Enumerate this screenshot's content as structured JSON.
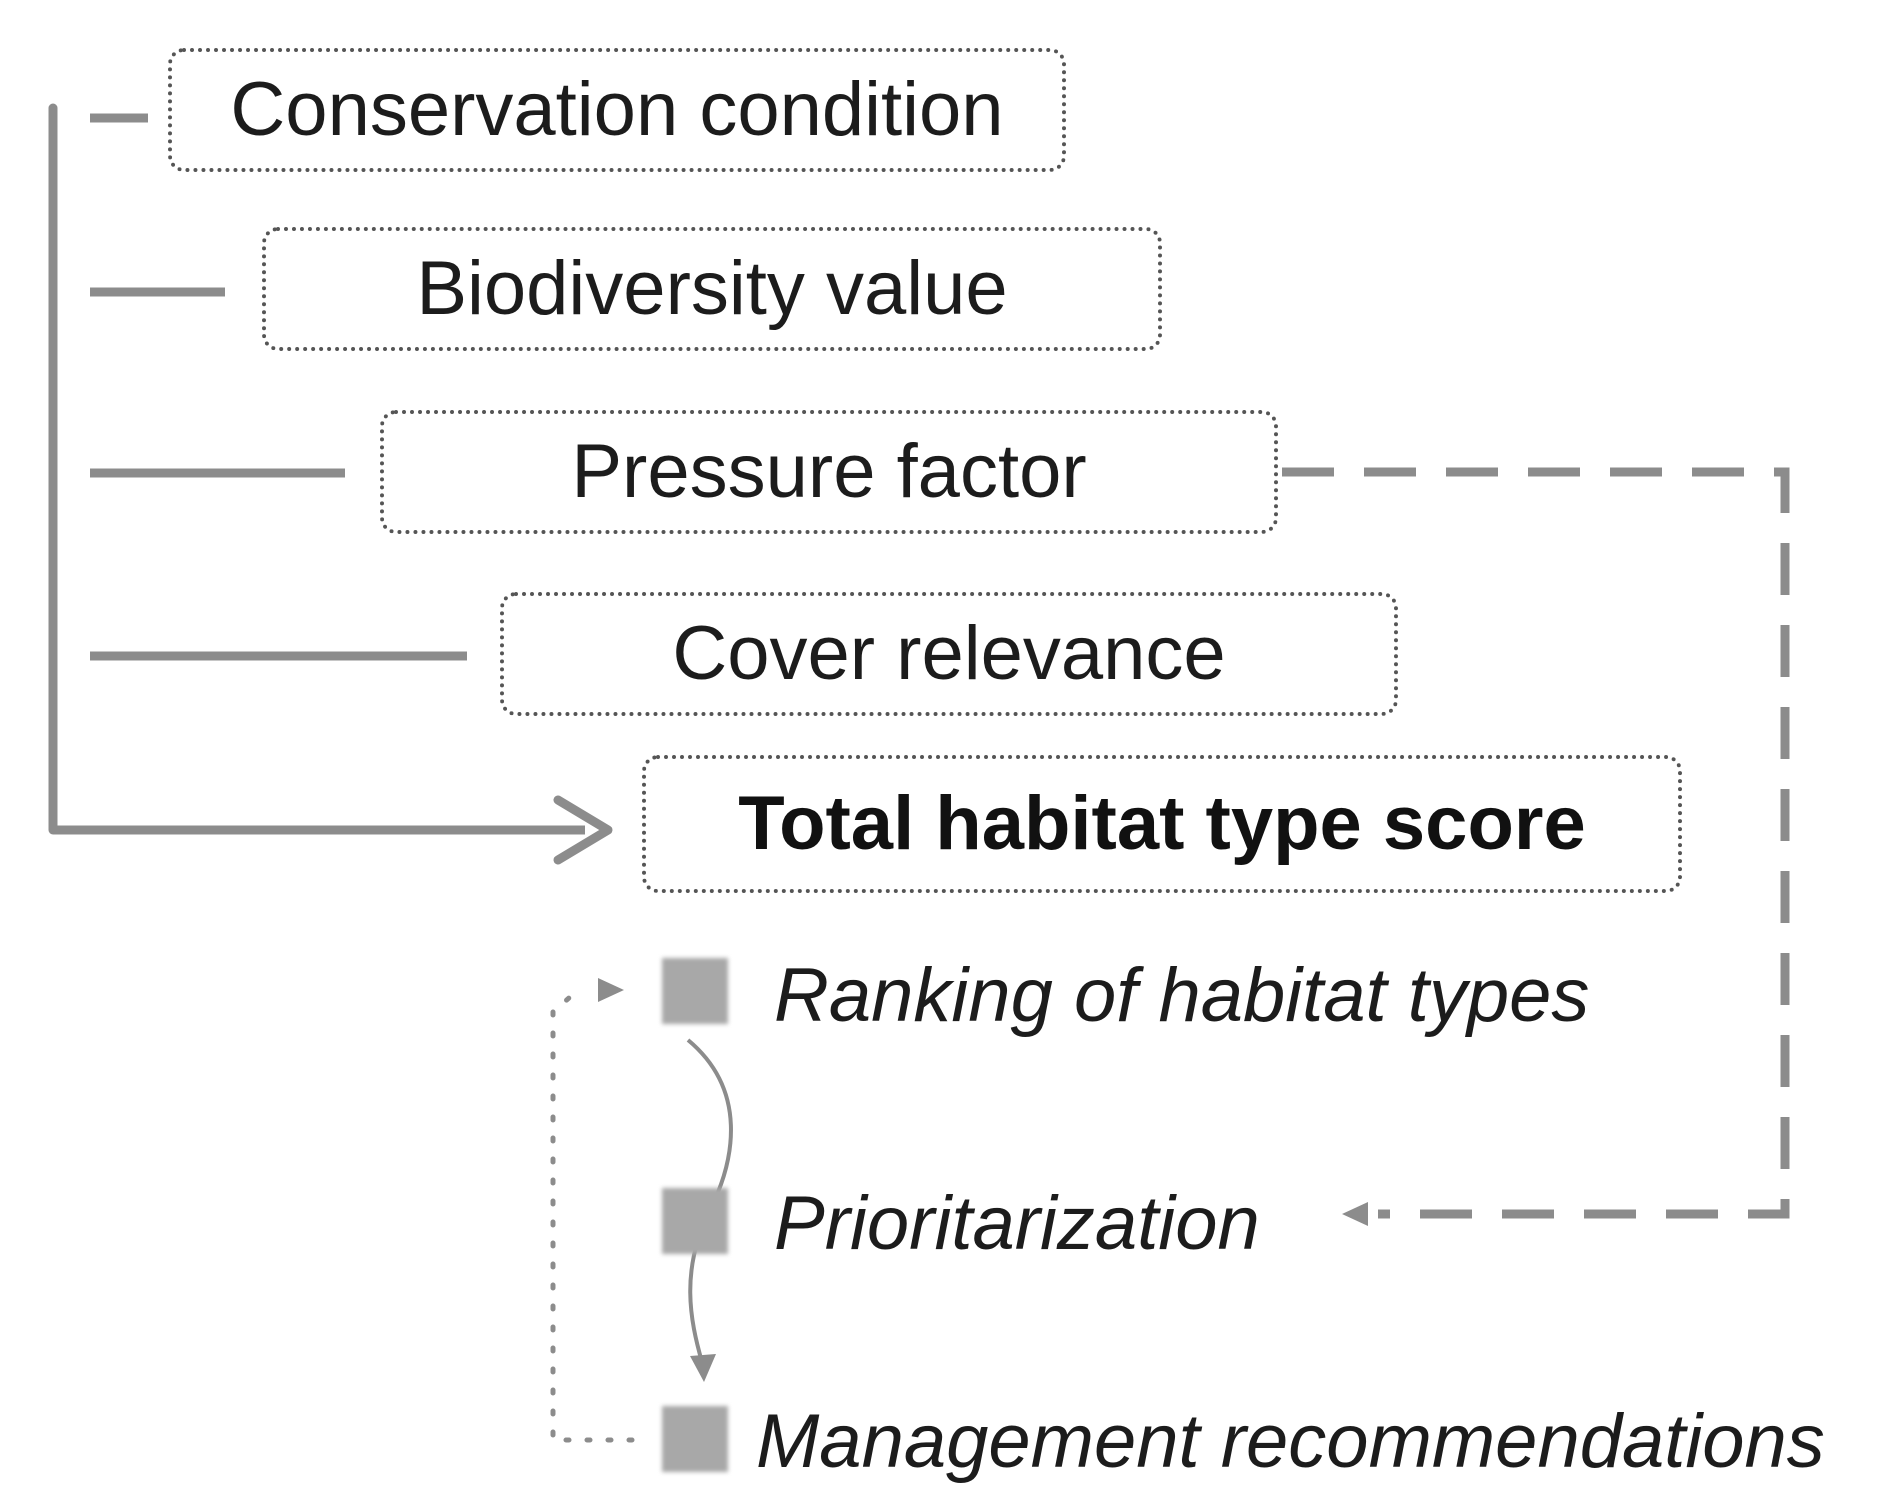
{
  "boxes": {
    "conservation": "Conservation condition",
    "biodiversity": "Biodiversity value",
    "pressure": "Pressure factor",
    "cover": "Cover relevance",
    "total": "Total habitat type score"
  },
  "outcomes": {
    "ranking": "Ranking of habitat types",
    "prioritization": "Prioritarization",
    "management": "Management recommendations"
  },
  "colors": {
    "connector": "#8c8c8c",
    "box_border": "#555555",
    "marker": "#a8a8a8",
    "text": "#1c1c1c"
  }
}
